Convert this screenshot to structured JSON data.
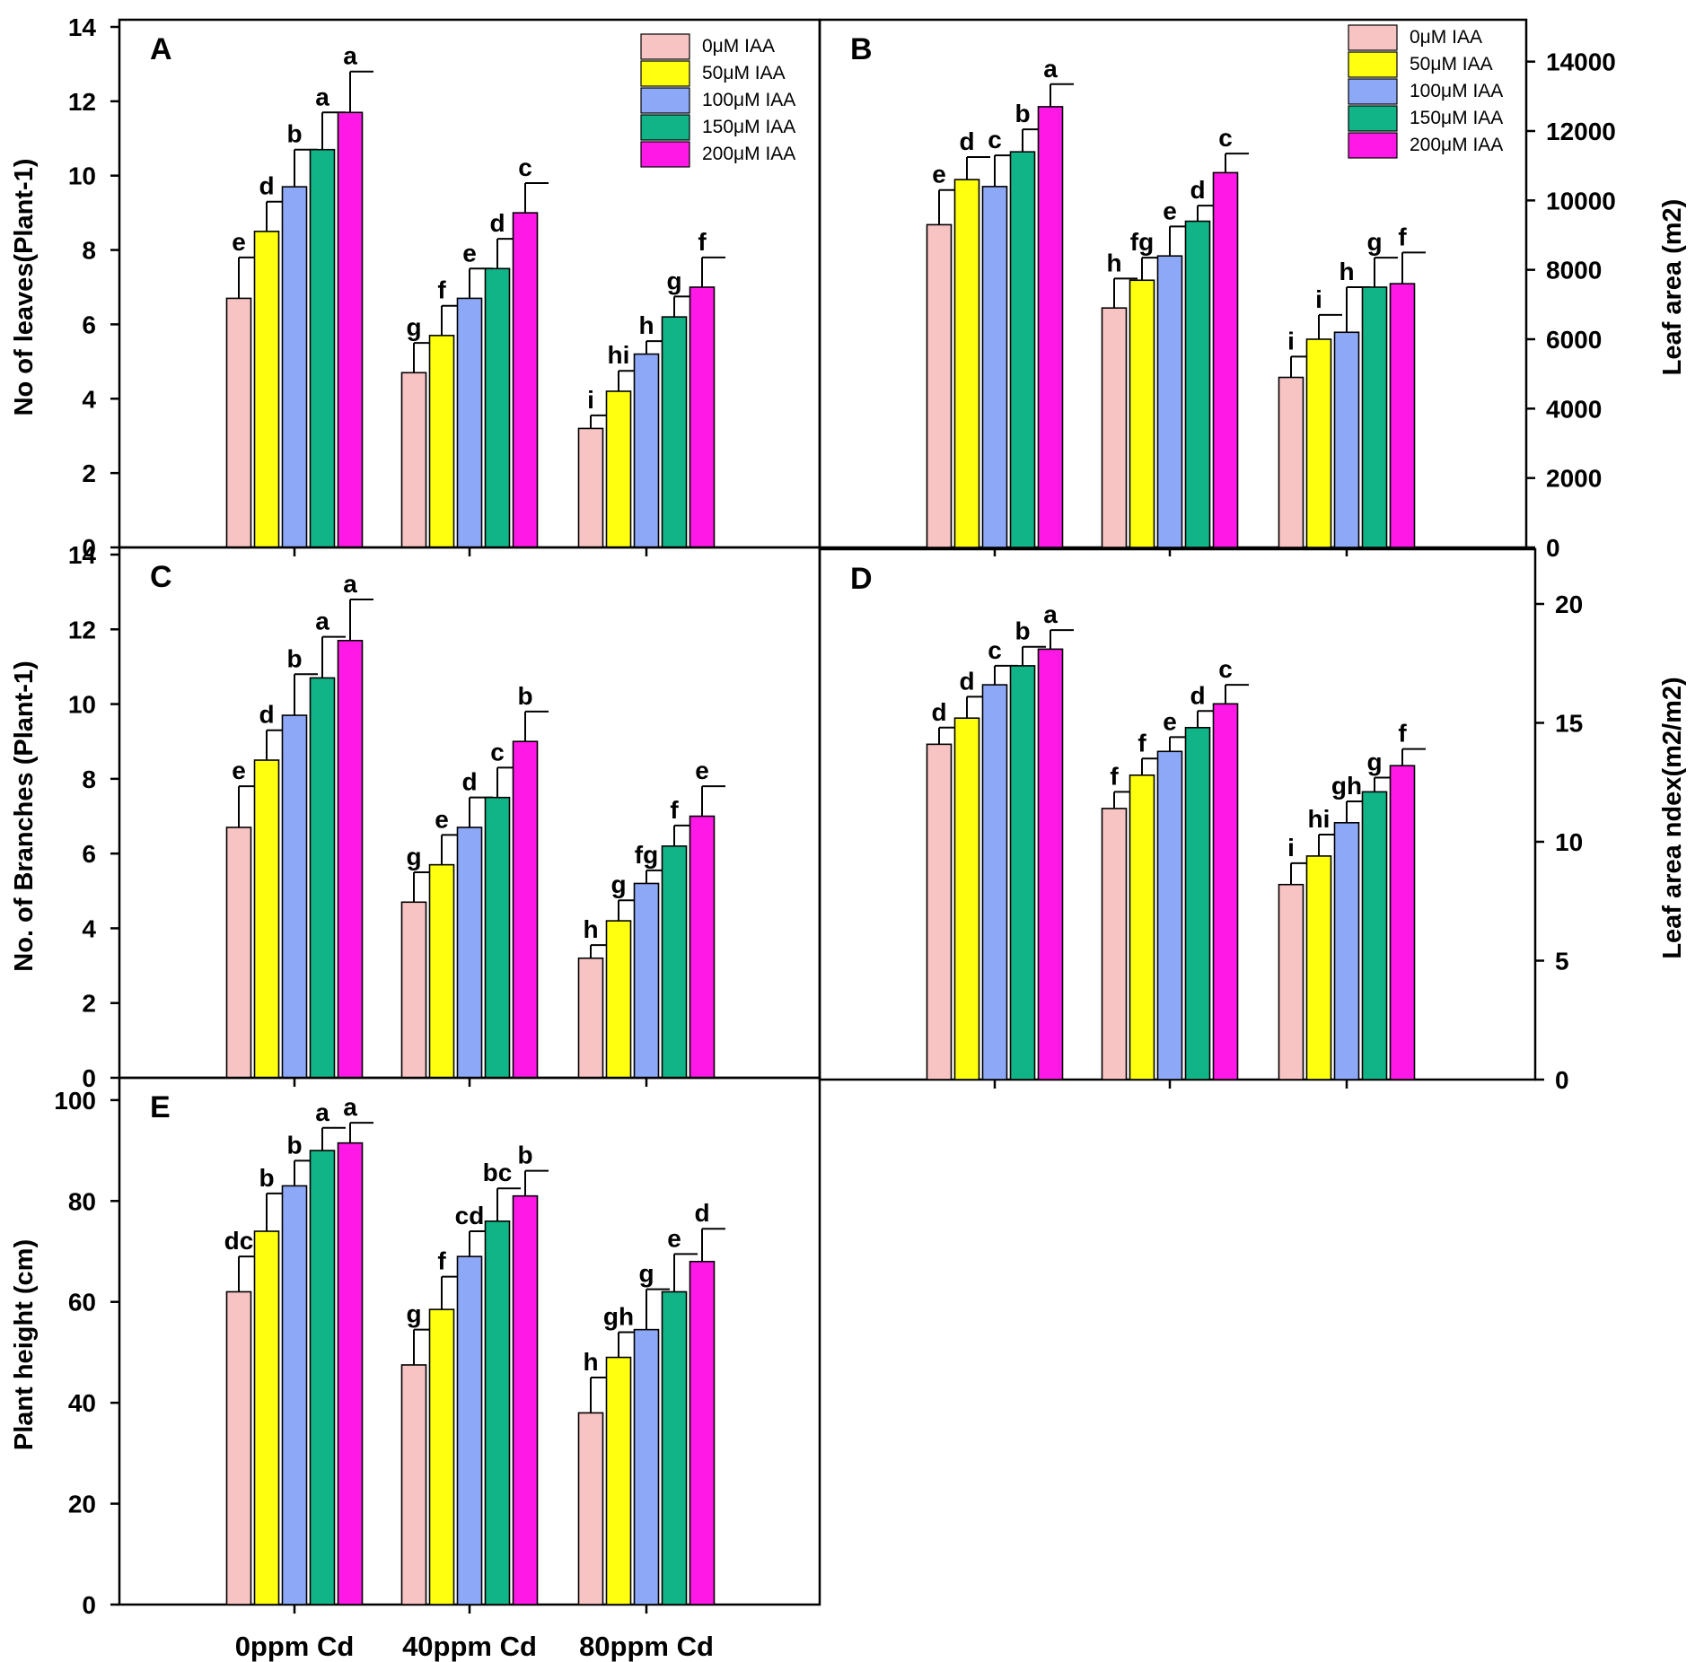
{
  "legend_labels": [
    "0μM IAA",
    "50μM IAA",
    "100μM IAA",
    "150μM IAA",
    "200μM IAA"
  ],
  "colors": [
    "#f7c3c3",
    "#ffff10",
    "#8ea8f8",
    "#11b487",
    "#ff18e6"
  ],
  "categories": [
    "0ppm Cd",
    "40ppm Cd",
    "80ppm Cd"
  ],
  "chart_data": [
    {
      "panel": "A",
      "type": "bar",
      "ylabel": "No of leaves(Plant-1)",
      "axis_side": "left",
      "ylim": [
        0,
        14
      ],
      "yticks": [
        0,
        2,
        4,
        6,
        8,
        10,
        12,
        14
      ],
      "legend": true,
      "series": [
        {
          "name": "0μM IAA",
          "values": [
            6.7,
            4.7,
            3.2
          ],
          "errors": [
            1.1,
            0.8,
            0.35
          ],
          "letters": [
            "e",
            "g",
            "i"
          ]
        },
        {
          "name": "50μM IAA",
          "values": [
            8.5,
            5.7,
            4.2
          ],
          "errors": [
            0.8,
            0.8,
            0.55
          ],
          "letters": [
            "d",
            "f",
            "hi"
          ]
        },
        {
          "name": "100μM IAA",
          "values": [
            9.7,
            6.7,
            5.2
          ],
          "errors": [
            1.0,
            0.8,
            0.35
          ],
          "letters": [
            "b",
            "e",
            "h"
          ]
        },
        {
          "name": "150μM IAA",
          "values": [
            10.7,
            7.5,
            6.2
          ],
          "errors": [
            1.0,
            0.8,
            0.55
          ],
          "letters": [
            "a",
            "d",
            "g"
          ]
        },
        {
          "name": "200μM IAA",
          "values": [
            11.7,
            9.0,
            7.0
          ],
          "errors": [
            1.1,
            0.8,
            0.8
          ],
          "letters": [
            "a",
            "c",
            "f"
          ]
        }
      ]
    },
    {
      "panel": "B",
      "type": "bar",
      "ylabel": "Leaf area (m2)",
      "axis_side": "right",
      "ylim": [
        0,
        15000
      ],
      "yticks": [
        0,
        2000,
        4000,
        6000,
        8000,
        10000,
        12000,
        14000
      ],
      "legend": true,
      "series": [
        {
          "name": "0μM IAA",
          "values": [
            9300,
            6900,
            4900
          ],
          "errors": [
            1000,
            850,
            600
          ],
          "letters": [
            "e",
            "h",
            "i"
          ]
        },
        {
          "name": "50μM IAA",
          "values": [
            10600,
            7700,
            6000
          ],
          "errors": [
            650,
            650,
            700
          ],
          "letters": [
            "d",
            "fg",
            "i"
          ]
        },
        {
          "name": "100μM IAA",
          "values": [
            10400,
            8400,
            6200
          ],
          "errors": [
            900,
            850,
            1300
          ],
          "letters": [
            "c",
            "e",
            "h"
          ]
        },
        {
          "name": "150μM IAA",
          "values": [
            11400,
            9400,
            7500
          ],
          "errors": [
            650,
            450,
            850
          ],
          "letters": [
            "b",
            "d",
            "g"
          ]
        },
        {
          "name": "200μM IAA",
          "values": [
            12700,
            10800,
            7600
          ],
          "errors": [
            650,
            550,
            900
          ],
          "letters": [
            "a",
            "c",
            "f"
          ]
        }
      ]
    },
    {
      "panel": "C",
      "type": "bar",
      "ylabel": "No. of Branches (Plant-1)",
      "axis_side": "left",
      "ylim": [
        0,
        14
      ],
      "yticks": [
        0,
        2,
        4,
        6,
        8,
        10,
        12,
        14
      ],
      "legend": false,
      "series": [
        {
          "name": "0μM IAA",
          "values": [
            6.7,
            4.7,
            3.2
          ],
          "errors": [
            1.1,
            0.8,
            0.35
          ],
          "letters": [
            "e",
            "g",
            "h"
          ]
        },
        {
          "name": "50μM IAA",
          "values": [
            8.5,
            5.7,
            4.2
          ],
          "errors": [
            0.8,
            0.8,
            0.55
          ],
          "letters": [
            "d",
            "e",
            "g"
          ]
        },
        {
          "name": "100μM IAA",
          "values": [
            9.7,
            6.7,
            5.2
          ],
          "errors": [
            1.1,
            0.8,
            0.35
          ],
          "letters": [
            "b",
            "d",
            "fg"
          ]
        },
        {
          "name": "150μM IAA",
          "values": [
            10.7,
            7.5,
            6.2
          ],
          "errors": [
            1.1,
            0.8,
            0.55
          ],
          "letters": [
            "a",
            "c",
            "f"
          ]
        },
        {
          "name": "200μM IAA",
          "values": [
            11.7,
            9.0,
            7.0
          ],
          "errors": [
            1.1,
            0.8,
            0.8
          ],
          "letters": [
            "a",
            "b",
            "e"
          ]
        }
      ]
    },
    {
      "panel": "D",
      "type": "bar",
      "ylabel": "Leaf area ndex(m2/m2)",
      "axis_side": "right",
      "ylim": [
        0,
        22
      ],
      "yticks": [
        0,
        5,
        10,
        15,
        20
      ],
      "legend": false,
      "series": [
        {
          "name": "0μM IAA",
          "values": [
            14.1,
            11.4,
            8.2
          ],
          "errors": [
            0.7,
            0.7,
            0.9
          ],
          "letters": [
            "d",
            "f",
            "i"
          ]
        },
        {
          "name": "50μM IAA",
          "values": [
            15.2,
            12.8,
            9.4
          ],
          "errors": [
            0.9,
            0.7,
            0.9
          ],
          "letters": [
            "d",
            "f",
            "hi"
          ]
        },
        {
          "name": "100μM IAA",
          "values": [
            16.6,
            13.8,
            10.8
          ],
          "errors": [
            0.8,
            0.6,
            0.9
          ],
          "letters": [
            "c",
            "e",
            "gh"
          ]
        },
        {
          "name": "150μM IAA",
          "values": [
            17.4,
            14.8,
            12.1
          ],
          "errors": [
            0.8,
            0.7,
            0.6
          ],
          "letters": [
            "b",
            "d",
            "g"
          ]
        },
        {
          "name": "200μM IAA",
          "values": [
            18.1,
            15.8,
            13.2
          ],
          "errors": [
            0.8,
            0.8,
            0.7
          ],
          "letters": [
            "a",
            "c",
            "f"
          ]
        }
      ]
    },
    {
      "panel": "E",
      "type": "bar",
      "ylabel": "Plant height (cm)",
      "axis_side": "left",
      "ylim": [
        0,
        103
      ],
      "yticks": [
        0,
        20,
        40,
        60,
        80,
        100
      ],
      "legend": false,
      "series": [
        {
          "name": "0μM IAA",
          "values": [
            62,
            47.5,
            38
          ],
          "errors": [
            7,
            7,
            7
          ],
          "letters": [
            "dc",
            "g",
            "h"
          ]
        },
        {
          "name": "50μM IAA",
          "values": [
            74,
            58.5,
            49
          ],
          "errors": [
            7.5,
            6.5,
            5
          ],
          "letters": [
            "b",
            "f",
            "gh"
          ]
        },
        {
          "name": "100μM IAA",
          "values": [
            83,
            69,
            54.5
          ],
          "errors": [
            5,
            5,
            8
          ],
          "letters": [
            "b",
            "cd",
            "g"
          ]
        },
        {
          "name": "150μM IAA",
          "values": [
            90,
            76,
            62
          ],
          "errors": [
            4.5,
            6.5,
            7.5
          ],
          "letters": [
            "a",
            "bc",
            "e"
          ]
        },
        {
          "name": "200μM IAA",
          "values": [
            91.5,
            81,
            68
          ],
          "errors": [
            4,
            5,
            6.5
          ],
          "letters": [
            "a",
            "b",
            "d"
          ]
        }
      ]
    }
  ]
}
